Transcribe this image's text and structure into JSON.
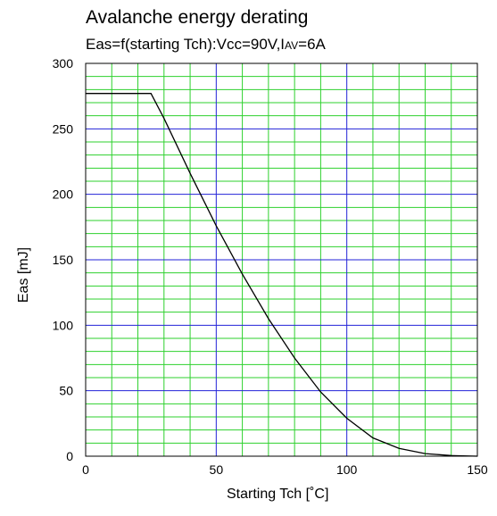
{
  "chart_data": {
    "type": "line",
    "title": "Avalanche energy derating",
    "subtitle": {
      "prefix": "Eas=f(starting Tch):Vcc=90V,I",
      "sub": "AV",
      "suffix": "=6A"
    },
    "xlabel": "Starting Tch [˚C]",
    "ylabel": "Eas [mJ]",
    "xlim": [
      0,
      150
    ],
    "ylim": [
      0,
      300
    ],
    "x_ticks": [
      0,
      50,
      100,
      150
    ],
    "y_ticks": [
      0,
      50,
      100,
      150,
      200,
      250,
      300
    ],
    "grid": {
      "major_color": "#2323d8",
      "minor_color": "#2ed12e",
      "x_major_step": 50,
      "x_minor_step": 10,
      "y_major_step": 50,
      "y_minor_step": 10
    },
    "line_color": "#000000",
    "series": [
      {
        "x": [
          0,
          25,
          30,
          40,
          50,
          60,
          70,
          80,
          90,
          100,
          110,
          120,
          130,
          140,
          150
        ],
        "y": [
          277,
          277,
          258,
          216,
          176,
          139,
          105,
          75,
          49,
          29,
          14,
          6,
          2,
          0.5,
          0
        ]
      }
    ]
  }
}
